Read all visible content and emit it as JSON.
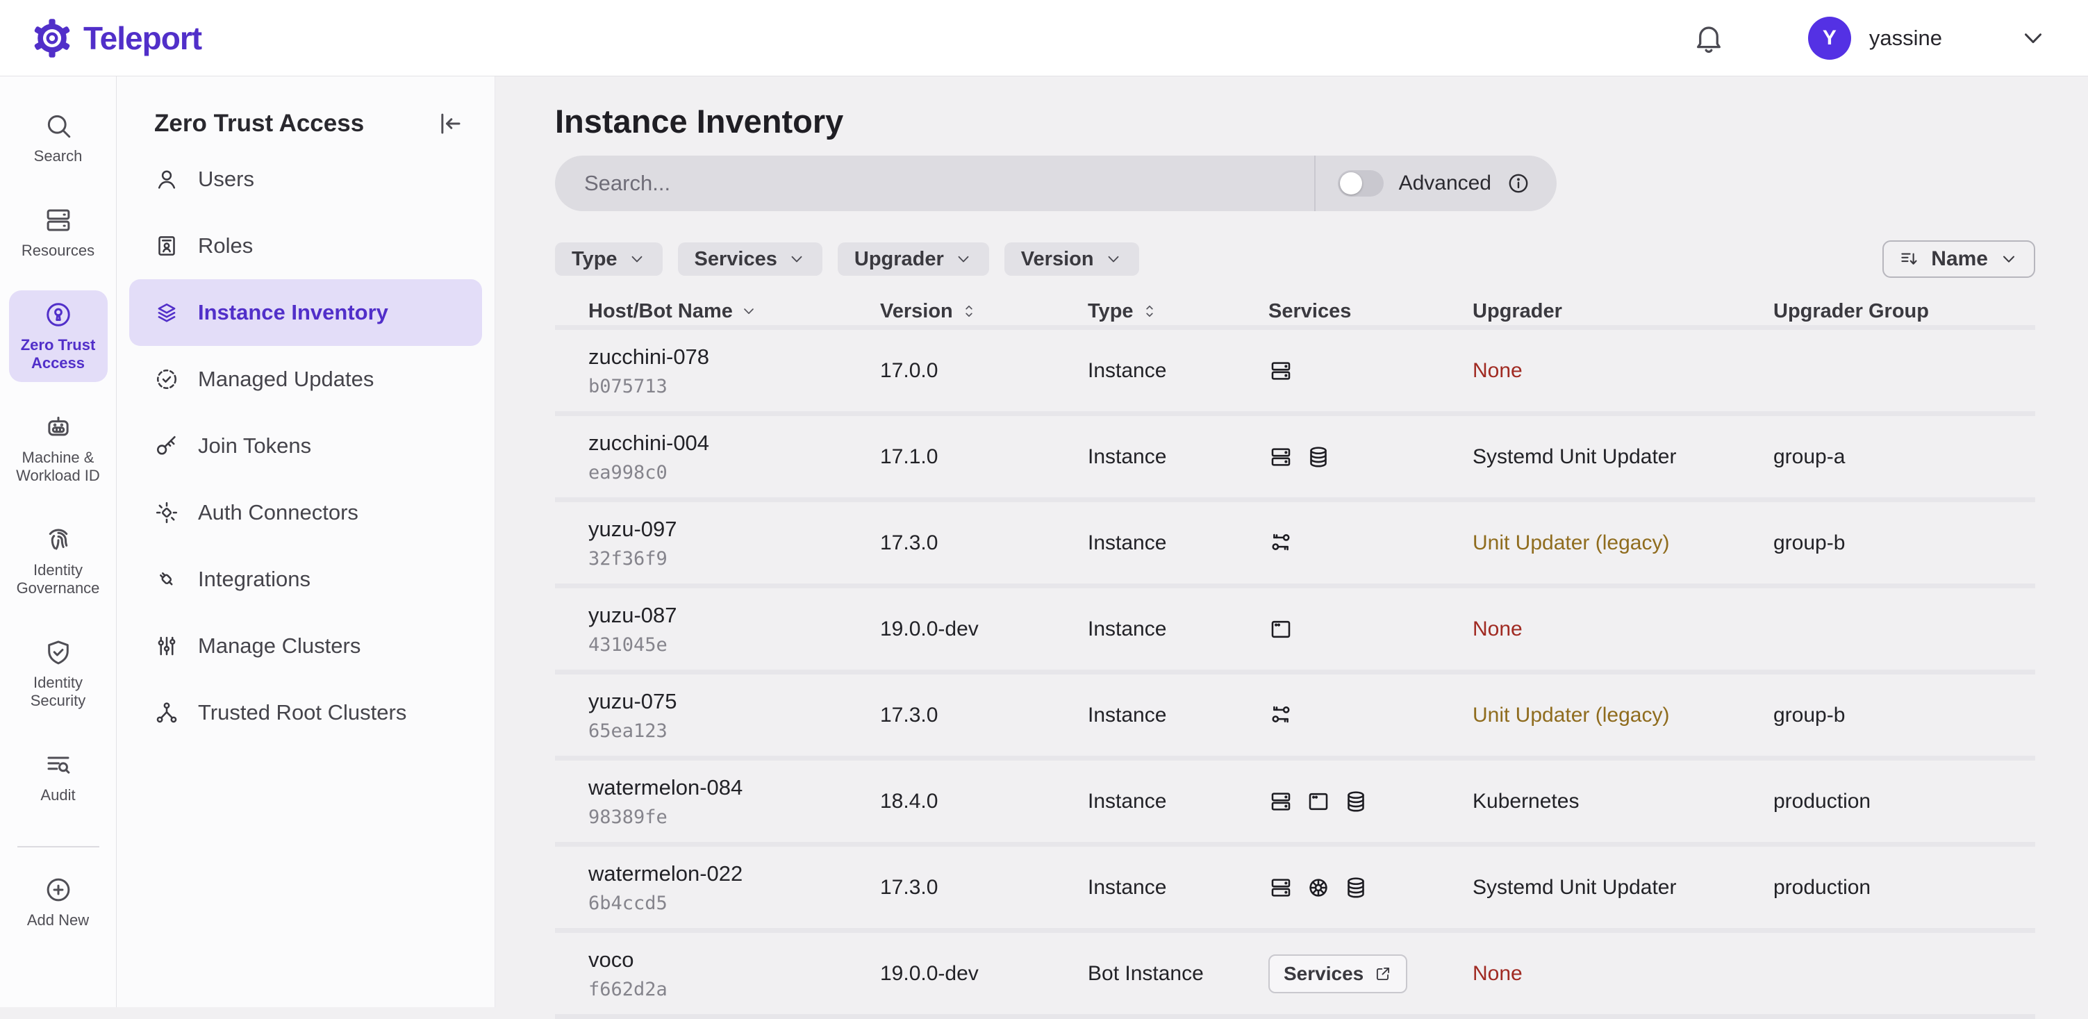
{
  "colors": {
    "accent": "#512fc9",
    "accent_soft": "#e3ddf8",
    "avatar": "#5431e4",
    "page_bg": "#f1f0f2",
    "surface": "#ffffff",
    "panel_bg": "#fbfbfc",
    "border": "#e3e2e6",
    "row_divider": "#e7e6ea",
    "text": "#222227",
    "text_muted": "#4f4e55",
    "text_faint": "#85848c",
    "chip_bg": "#e2e1e6",
    "search_bg": "#dddce1",
    "danger": "#a02a22",
    "warning": "#8f6c1e"
  },
  "header": {
    "brand": "Teleport",
    "user_initial": "Y",
    "user_name": "yassine"
  },
  "global_nav": {
    "items": [
      {
        "label": "Search",
        "icon": "search",
        "active": false
      },
      {
        "label": "Resources",
        "icon": "servers",
        "active": false
      },
      {
        "label": "Zero Trust Access",
        "icon": "keyhole",
        "active": true
      },
      {
        "label": "Machine & Workload ID",
        "icon": "robot",
        "active": false
      },
      {
        "label": "Identity Governance",
        "icon": "fingerprint",
        "active": false
      },
      {
        "label": "Identity Security",
        "icon": "shield-check",
        "active": false
      },
      {
        "label": "Audit",
        "icon": "list-search",
        "active": false
      }
    ],
    "footer_items": [
      {
        "label": "Add New",
        "icon": "plus-circle",
        "active": false
      }
    ]
  },
  "panel": {
    "title": "Zero Trust Access",
    "items": [
      {
        "label": "Users",
        "icon": "user",
        "active": false
      },
      {
        "label": "Roles",
        "icon": "id-card",
        "active": false
      },
      {
        "label": "Instance Inventory",
        "icon": "layers",
        "active": true
      },
      {
        "label": "Managed Updates",
        "icon": "update-check",
        "active": false
      },
      {
        "label": "Join Tokens",
        "icon": "key",
        "active": false
      },
      {
        "label": "Auth Connectors",
        "icon": "auth-connector",
        "active": false
      },
      {
        "label": "Integrations",
        "icon": "plug",
        "active": false
      },
      {
        "label": "Manage Clusters",
        "icon": "sliders",
        "active": false
      },
      {
        "label": "Trusted Root Clusters",
        "icon": "network",
        "active": false
      }
    ]
  },
  "main": {
    "title": "Instance Inventory",
    "search": {
      "placeholder": "Search...",
      "advanced_label": "Advanced",
      "advanced_on": false
    },
    "filters": [
      {
        "label": "Type"
      },
      {
        "label": "Services"
      },
      {
        "label": "Upgrader"
      },
      {
        "label": "Version"
      }
    ],
    "sort": {
      "label": "Name"
    },
    "table": {
      "columns": [
        {
          "label": "Host/Bot Name",
          "sort": "down"
        },
        {
          "label": "Version",
          "sort": "both"
        },
        {
          "label": "Type",
          "sort": "both"
        },
        {
          "label": "Services",
          "sort": "none"
        },
        {
          "label": "Upgrader",
          "sort": "none"
        },
        {
          "label": "Upgrader Group",
          "sort": "none"
        }
      ],
      "rows": [
        {
          "name": "zucchini-078",
          "id": "b075713",
          "version": "17.0.0",
          "type": "Instance",
          "services": [
            "server"
          ],
          "upgrader": "None",
          "upgrader_tone": "danger",
          "group": ""
        },
        {
          "name": "zucchini-004",
          "id": "ea998c0",
          "version": "17.1.0",
          "type": "Instance",
          "services": [
            "server",
            "database"
          ],
          "upgrader": "Systemd Unit Updater",
          "upgrader_tone": "normal",
          "group": "group-a"
        },
        {
          "name": "yuzu-097",
          "id": "32f36f9",
          "version": "17.3.0",
          "type": "Instance",
          "services": [
            "keys"
          ],
          "upgrader": "Unit Updater (legacy)",
          "upgrader_tone": "warning",
          "group": "group-b"
        },
        {
          "name": "yuzu-087",
          "id": "431045e",
          "version": "19.0.0-dev",
          "type": "Instance",
          "services": [
            "application"
          ],
          "upgrader": "None",
          "upgrader_tone": "danger",
          "group": ""
        },
        {
          "name": "yuzu-075",
          "id": "65ea123",
          "version": "17.3.0",
          "type": "Instance",
          "services": [
            "keys"
          ],
          "upgrader": "Unit Updater (legacy)",
          "upgrader_tone": "warning",
          "group": "group-b"
        },
        {
          "name": "watermelon-084",
          "id": "98389fe",
          "version": "18.4.0",
          "type": "Instance",
          "services": [
            "server",
            "application",
            "database"
          ],
          "upgrader": "Kubernetes",
          "upgrader_tone": "normal",
          "group": "production"
        },
        {
          "name": "watermelon-022",
          "id": "6b4ccd5",
          "version": "17.3.0",
          "type": "Instance",
          "services": [
            "server",
            "kubernetes",
            "database"
          ],
          "upgrader": "Systemd Unit Updater",
          "upgrader_tone": "normal",
          "group": "production"
        },
        {
          "name": "voco",
          "id": "f662d2a",
          "version": "19.0.0-dev",
          "type": "Bot Instance",
          "services_button": {
            "label": "Services",
            "icon": "external-link"
          },
          "upgrader": "None",
          "upgrader_tone": "danger",
          "group": ""
        }
      ]
    }
  }
}
